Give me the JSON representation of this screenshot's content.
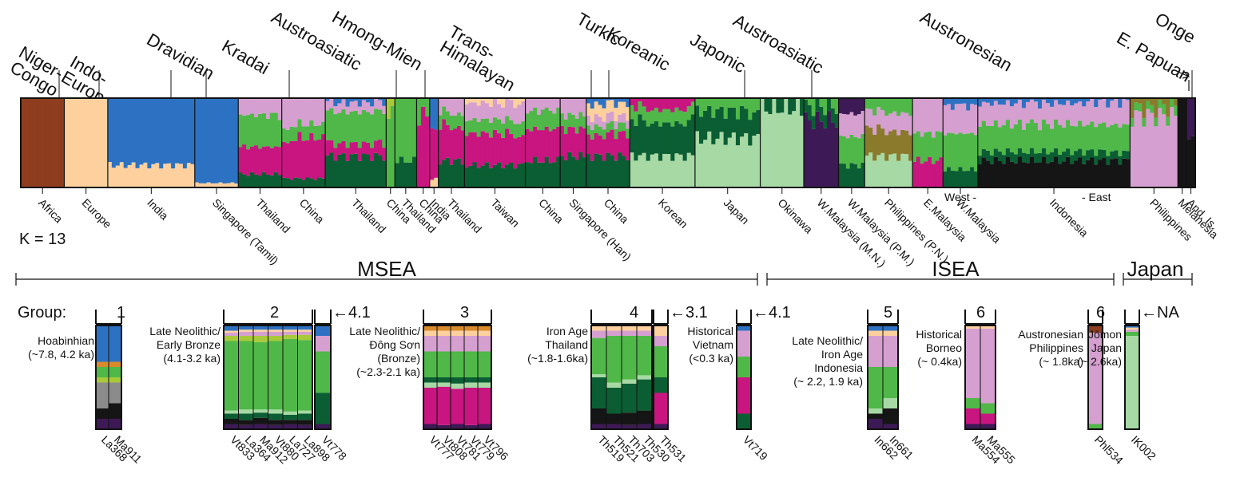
{
  "colors": {
    "brown": "#8e3d1f",
    "peach": "#fdd09e",
    "blue": "#2d72c2",
    "green": "#4fb848",
    "magenta": "#c8157f",
    "lilac": "#d59fd0",
    "darkgreen": "#0b5e33",
    "mint": "#a7d9a5",
    "purple": "#3d1a55",
    "olive": "#8a7a2b",
    "black": "#151515",
    "lime": "#a8c93a",
    "gray": "#8b8b8b",
    "orange": "#d98a2a"
  },
  "chart_data": {
    "type": "bar",
    "k_label": "K = 13",
    "families": [
      {
        "id": "niger-congo",
        "text": "Niger-\nCongo"
      },
      {
        "id": "indo-european",
        "text": "Indo-\nEuropean"
      },
      {
        "id": "dravidian",
        "text": "Dravidian"
      },
      {
        "id": "kradai",
        "text": "Kradai"
      },
      {
        "id": "austroasiatic-1",
        "text": "Austroasiatic"
      },
      {
        "id": "hmong-mien",
        "text": "Hmong-Mien"
      },
      {
        "id": "trans-himalayan",
        "text": "Trans-\nHimalayan"
      },
      {
        "id": "turkic",
        "text": "Turkic"
      },
      {
        "id": "koreanic",
        "text": "Koreanic"
      },
      {
        "id": "japonic",
        "text": "Japonic"
      },
      {
        "id": "austroasiatic-2",
        "text": "Austroasiatic"
      },
      {
        "id": "austronesian",
        "text": "Austronesian"
      },
      {
        "id": "onge",
        "text": "Onge"
      },
      {
        "id": "e-papuan",
        "text": "E. Papuan"
      }
    ],
    "populations": [
      {
        "name": "Africa",
        "start": 0,
        "end": 1,
        "colors": [
          "brown"
        ],
        "props": [
          1.0
        ]
      },
      {
        "name": "Europe",
        "start": 1,
        "end": 2,
        "colors": [
          "peach"
        ],
        "props": [
          1.0
        ]
      },
      {
        "name": "India",
        "start": 2,
        "end": 4,
        "colors": [
          "peach",
          "blue"
        ],
        "props": [
          0.25,
          0.75
        ]
      },
      {
        "name": "Singapore (Tamil)",
        "start": 4,
        "end": 5,
        "colors": [
          "peach",
          "blue"
        ],
        "props": [
          0.05,
          0.95
        ]
      },
      {
        "name": "Thailand",
        "start": 5,
        "end": 6,
        "colors": [
          "darkgreen",
          "magenta",
          "green",
          "lilac"
        ],
        "props": [
          0.15,
          0.3,
          0.35,
          0.2
        ]
      },
      {
        "name": "China",
        "start": 6,
        "end": 7,
        "colors": [
          "darkgreen",
          "magenta",
          "green",
          "lilac"
        ],
        "props": [
          0.1,
          0.45,
          0.15,
          0.3
        ]
      },
      {
        "name": "Thailand",
        "start": 7,
        "end": 8.4,
        "colors": [
          "darkgreen",
          "magenta",
          "green",
          "lilac",
          "blue"
        ],
        "props": [
          0.35,
          0.15,
          0.35,
          0.1,
          0.05
        ]
      },
      {
        "name": "China",
        "start": 8.4,
        "end": 8.6,
        "colors": [
          "green",
          "lime"
        ],
        "props": [
          0.8,
          0.2
        ]
      },
      {
        "name": "Thailand",
        "start": 8.6,
        "end": 9.1,
        "colors": [
          "darkgreen",
          "green"
        ],
        "props": [
          0.3,
          0.7
        ]
      },
      {
        "name": "China",
        "start": 9.1,
        "end": 9.4,
        "colors": [
          "magenta",
          "green"
        ],
        "props": [
          0.8,
          0.2
        ]
      },
      {
        "name": "India",
        "start": 9.4,
        "end": 9.6,
        "colors": [
          "peach",
          "magenta",
          "blue"
        ],
        "props": [
          0.1,
          0.6,
          0.3
        ]
      },
      {
        "name": "Thailand",
        "start": 9.6,
        "end": 10.2,
        "colors": [
          "darkgreen",
          "magenta",
          "green",
          "lilac"
        ],
        "props": [
          0.3,
          0.4,
          0.15,
          0.15
        ]
      },
      {
        "name": "Taiwan",
        "start": 10.2,
        "end": 11.6,
        "colors": [
          "darkgreen",
          "magenta",
          "green",
          "lilac",
          "peach"
        ],
        "props": [
          0.25,
          0.35,
          0.15,
          0.2,
          0.05
        ]
      },
      {
        "name": "China",
        "start": 11.6,
        "end": 12.4,
        "colors": [
          "darkgreen",
          "magenta",
          "green",
          "lilac"
        ],
        "props": [
          0.3,
          0.35,
          0.2,
          0.15
        ]
      },
      {
        "name": "Singapore (Han)",
        "start": 12.4,
        "end": 13.0,
        "colors": [
          "darkgreen",
          "magenta",
          "green",
          "lilac"
        ],
        "props": [
          0.35,
          0.3,
          0.15,
          0.2
        ]
      },
      {
        "name": "China",
        "start": 13.0,
        "end": 14.0,
        "colors": [
          "darkgreen",
          "magenta",
          "green",
          "lilac",
          "peach",
          "blue"
        ],
        "props": [
          0.35,
          0.25,
          0.1,
          0.1,
          0.15,
          0.05
        ]
      },
      {
        "name": "Korean",
        "start": 14.0,
        "end": 15.5,
        "colors": [
          "mint",
          "darkgreen",
          "green",
          "magenta"
        ],
        "props": [
          0.35,
          0.4,
          0.15,
          0.1
        ]
      },
      {
        "name": "Japan",
        "start": 15.5,
        "end": 17.0,
        "colors": [
          "mint",
          "darkgreen",
          "green"
        ],
        "props": [
          0.55,
          0.3,
          0.15
        ]
      },
      {
        "name": "Okinawa",
        "start": 17.0,
        "end": 18.0,
        "colors": [
          "mint",
          "darkgreen"
        ],
        "props": [
          0.9,
          0.1
        ]
      },
      {
        "name": "W.Malaysia (M.N.)",
        "start": 18.0,
        "end": 18.8,
        "colors": [
          "purple",
          "darkgreen",
          "green"
        ],
        "props": [
          0.75,
          0.15,
          0.1
        ]
      },
      {
        "name": "W.Malaysia (P.M.)",
        "start": 18.8,
        "end": 19.4,
        "colors": [
          "darkgreen",
          "green",
          "lilac",
          "purple"
        ],
        "props": [
          0.25,
          0.35,
          0.25,
          0.15
        ]
      },
      {
        "name": "Philippines (P.N.)",
        "start": 19.4,
        "end": 20.5,
        "colors": [
          "mint",
          "olive",
          "lilac",
          "green"
        ],
        "props": [
          0.35,
          0.3,
          0.2,
          0.15
        ]
      },
      {
        "name": "E.Malaysia",
        "start": 20.5,
        "end": 21.2,
        "colors": [
          "magenta",
          "green",
          "lilac"
        ],
        "props": [
          0.3,
          0.3,
          0.4
        ]
      },
      {
        "name": "W.Malaysia",
        "start": 21.2,
        "end": 22.0,
        "colors": [
          "darkgreen",
          "green",
          "lilac",
          "blue"
        ],
        "props": [
          0.2,
          0.4,
          0.3,
          0.1
        ]
      },
      {
        "name": "Indonesia",
        "start": 22.0,
        "end": 25.5,
        "colors": [
          "black",
          "darkgreen",
          "green",
          "lilac",
          "blue"
        ],
        "props": [
          0.3,
          0.1,
          0.3,
          0.25,
          0.05
        ]
      },
      {
        "name": "Philippines",
        "start": 25.5,
        "end": 26.6,
        "colors": [
          "lilac",
          "green",
          "olive"
        ],
        "props": [
          0.8,
          0.1,
          0.1
        ]
      },
      {
        "name": "Melanesia",
        "start": 26.6,
        "end": 26.8,
        "colors": [
          "black"
        ],
        "props": [
          1.0
        ]
      },
      {
        "name": "And. Is.",
        "start": 26.8,
        "end": 27.0,
        "colors": [
          "black",
          "purple"
        ],
        "props": [
          0.6,
          0.4
        ]
      }
    ],
    "west_label": "West -",
    "east_label": "- East",
    "regions": [
      {
        "id": "msea",
        "label": "MSEA"
      },
      {
        "id": "isea",
        "label": "ISEA"
      },
      {
        "id": "japan",
        "label": "Japan"
      }
    ],
    "group_label": "Group:",
    "ancient_groups": [
      {
        "id": "g1",
        "label": "1",
        "caption": "Hoabinhian\n(~7.8, 4.2 ka)",
        "samples": [
          "La368",
          "Ma911"
        ],
        "colors": [
          "purple",
          "black",
          "gray",
          "lime",
          "green",
          "orange",
          "blue"
        ],
        "props": [
          [
            0.1,
            0.1,
            0.25,
            0.05,
            0.1,
            0.05,
            0.35
          ],
          [
            0.1,
            0.15,
            0.2,
            0.05,
            0.1,
            0.05,
            0.35
          ]
        ]
      },
      {
        "id": "g2",
        "label": "2",
        "caption": "Late Neolithic/\nEarly Bronze\n(4.1-3.2 ka)",
        "samples": [
          "Vt833",
          "La364",
          "Ma912",
          "Vt880",
          "La727",
          "La898"
        ],
        "colors": [
          "purple",
          "black",
          "darkgreen",
          "mint",
          "green",
          "lime",
          "lilac",
          "peach",
          "blue"
        ],
        "props": [
          [
            0.05,
            0.05,
            0.05,
            0.03,
            0.67,
            0.05,
            0.03,
            0.02,
            0.05
          ],
          [
            0.04,
            0.05,
            0.06,
            0.04,
            0.66,
            0.05,
            0.04,
            0.02,
            0.04
          ],
          [
            0.05,
            0.06,
            0.05,
            0.03,
            0.65,
            0.06,
            0.04,
            0.02,
            0.04
          ],
          [
            0.04,
            0.05,
            0.06,
            0.04,
            0.66,
            0.05,
            0.04,
            0.02,
            0.04
          ],
          [
            0.05,
            0.04,
            0.05,
            0.03,
            0.7,
            0.04,
            0.03,
            0.02,
            0.04
          ],
          [
            0.04,
            0.05,
            0.06,
            0.03,
            0.68,
            0.05,
            0.03,
            0.02,
            0.04
          ]
        ]
      },
      {
        "id": "g2b",
        "label": "4.1",
        "caption": "",
        "samples": [
          "Vt778"
        ],
        "colors": [
          "purple",
          "darkgreen",
          "green",
          "lilac",
          "blue"
        ],
        "props": [
          [
            0.05,
            0.3,
            0.4,
            0.15,
            0.1
          ]
        ]
      },
      {
        "id": "g3",
        "label": "3",
        "caption": "Late Neolithic/\nĐông Sơn\n(Bronze)\n(~2.3-2.1 ka)",
        "samples": [
          "Vt777",
          "Vt808",
          "Vt781",
          "Vt779",
          "Vt796"
        ],
        "colors": [
          "purple",
          "magenta",
          "mint",
          "darkgreen",
          "green",
          "lilac",
          "peach",
          "orange"
        ],
        "props": [
          [
            0.05,
            0.35,
            0.05,
            0.05,
            0.25,
            0.15,
            0.05,
            0.05
          ],
          [
            0.04,
            0.37,
            0.04,
            0.05,
            0.25,
            0.15,
            0.05,
            0.05
          ],
          [
            0.05,
            0.34,
            0.05,
            0.06,
            0.25,
            0.15,
            0.05,
            0.05
          ],
          [
            0.04,
            0.36,
            0.05,
            0.05,
            0.25,
            0.15,
            0.05,
            0.05
          ],
          [
            0.05,
            0.35,
            0.05,
            0.05,
            0.25,
            0.15,
            0.05,
            0.05
          ]
        ]
      },
      {
        "id": "g4",
        "label": "4",
        "caption": "Iron Age\nThailand\n(~1.8-1.6ka)",
        "samples": [
          "Th519",
          "Th521",
          "Th703",
          "Th530"
        ],
        "colors": [
          "purple",
          "black",
          "darkgreen",
          "mint",
          "green",
          "lilac",
          "peach"
        ],
        "props": [
          [
            0.05,
            0.15,
            0.3,
            0.03,
            0.35,
            0.07,
            0.05
          ],
          [
            0.05,
            0.1,
            0.25,
            0.05,
            0.45,
            0.05,
            0.05
          ],
          [
            0.04,
            0.12,
            0.28,
            0.04,
            0.42,
            0.05,
            0.05
          ],
          [
            0.05,
            0.13,
            0.3,
            0.04,
            0.38,
            0.05,
            0.05
          ]
        ]
      },
      {
        "id": "g4b",
        "label": "3.1",
        "caption": "",
        "samples": [
          "Th531"
        ],
        "colors": [
          "purple",
          "magenta",
          "darkgreen",
          "green",
          "lilac",
          "peach"
        ],
        "props": [
          [
            0.05,
            0.3,
            0.15,
            0.3,
            0.1,
            0.1
          ]
        ]
      },
      {
        "id": "g4c",
        "label": "4.1",
        "caption": "Historical\nVietnam\n(<0.3 ka)",
        "samples": [
          "Vt719"
        ],
        "colors": [
          "darkgreen",
          "magenta",
          "green",
          "lilac",
          "blue"
        ],
        "props": [
          [
            0.15,
            0.35,
            0.2,
            0.25,
            0.05
          ]
        ]
      },
      {
        "id": "g5",
        "label": "5",
        "caption": "Late Neolithic/\nIron Age\nIndonesia\n(~ 2.2, 1.9 ka)",
        "samples": [
          "In662",
          "In661"
        ],
        "colors": [
          "purple",
          "black",
          "mint",
          "green",
          "lilac",
          "peach",
          "blue"
        ],
        "props": [
          [
            0.1,
            0.05,
            0.05,
            0.4,
            0.3,
            0.05,
            0.05
          ],
          [
            0.05,
            0.15,
            0.1,
            0.3,
            0.3,
            0.05,
            0.05
          ]
        ]
      },
      {
        "id": "g6",
        "label": "6",
        "caption": "Historical\nBorneo\n(~ 0.4ka)",
        "samples": [
          "Ma554",
          "Ma555"
        ],
        "colors": [
          "purple",
          "magenta",
          "green",
          "lilac",
          "peach"
        ],
        "props": [
          [
            0.05,
            0.15,
            0.1,
            0.67,
            0.03
          ],
          [
            0.05,
            0.1,
            0.1,
            0.72,
            0.03
          ]
        ]
      },
      {
        "id": "g6b",
        "label": "6",
        "caption": "Austronesian\nPhilippines\n(~ 1.8ka)",
        "samples": [
          "Phl534"
        ],
        "colors": [
          "green",
          "lilac",
          "brown"
        ],
        "props": [
          [
            0.05,
            0.88,
            0.07
          ]
        ]
      },
      {
        "id": "gna",
        "label": "NA",
        "caption": "Jōmon\nJapan\n(~ 2.6ka)",
        "samples": [
          "IK002"
        ],
        "colors": [
          "mint",
          "green",
          "lilac",
          "peach",
          "blue"
        ],
        "props": [
          [
            0.9,
            0.04,
            0.02,
            0.02,
            0.02
          ]
        ]
      }
    ]
  }
}
